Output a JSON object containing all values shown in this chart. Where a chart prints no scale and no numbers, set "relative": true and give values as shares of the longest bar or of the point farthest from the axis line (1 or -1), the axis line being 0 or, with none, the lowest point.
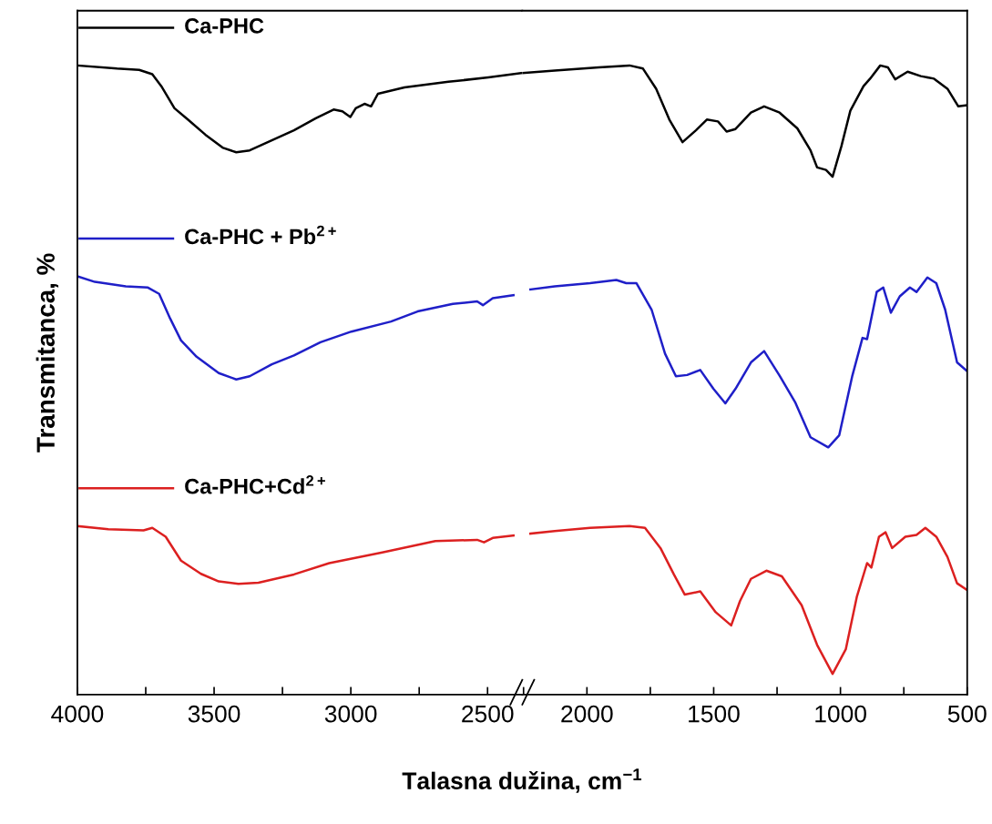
{
  "chart_data": [
    {
      "type": "line",
      "relative": true,
      "ylabel": "Transmitanca, %",
      "xlabel": "Talasna dužina, cm$^{−1}$",
      "xlim": [
        4000,
        2373
      ],
      "xticks": [
        4000,
        {
          "value": 3750,
          "label": null
        },
        3500,
        {
          "value": 3250,
          "label": null
        },
        3000,
        {
          "value": 2750,
          "label": null
        },
        2500
      ],
      "tick_labels": "x",
      "legend": "left",
      "grid": false,
      "series": [
        {
          "name": "Ca-PHC",
          "color": "#000000",
          "x": [
            4000,
            3855,
            3774,
            3726,
            3693,
            3645,
            3596,
            3532,
            3467,
            3419,
            3370,
            3289,
            3208,
            3128,
            3063,
            3031,
            3002,
            2982,
            2950,
            2926,
            2901,
            2804,
            2643,
            2497,
            2373
          ],
          "values": [
            1.0,
            0.995,
            0.993,
            0.986,
            0.967,
            0.932,
            0.914,
            0.89,
            0.869,
            0.862,
            0.865,
            0.881,
            0.897,
            0.916,
            0.93,
            0.927,
            0.918,
            0.932,
            0.939,
            0.935,
            0.955,
            0.965,
            0.974,
            0.981,
            0.988
          ]
        },
        {
          "name": "Ca-PHC + Pb$^{2+}$",
          "color": "#1f1fc8",
          "x": [
            4000,
            3936,
            3823,
            3742,
            3701,
            3661,
            3621,
            3564,
            3483,
            3419,
            3370,
            3289,
            3208,
            3111,
            2998,
            2853,
            2756,
            2627,
            2538,
            2517,
            2481,
            2405
          ],
          "values": [
            0.665,
            0.656,
            0.649,
            0.647,
            0.637,
            0.598,
            0.563,
            0.537,
            0.511,
            0.501,
            0.506,
            0.525,
            0.539,
            0.56,
            0.577,
            0.593,
            0.609,
            0.621,
            0.625,
            0.619,
            0.63,
            0.635
          ]
        },
        {
          "name": "Ca-PHC+Cd$^{2+}$",
          "color": "#dc2020",
          "x": [
            4000,
            3887,
            3758,
            3726,
            3677,
            3621,
            3548,
            3483,
            3411,
            3338,
            3208,
            3079,
            2885,
            2691,
            2538,
            2513,
            2481,
            2405
          ],
          "values": [
            0.268,
            0.263,
            0.261,
            0.265,
            0.251,
            0.213,
            0.192,
            0.18,
            0.176,
            0.178,
            0.191,
            0.209,
            0.226,
            0.244,
            0.246,
            0.242,
            0.249,
            0.253
          ]
        }
      ]
    },
    {
      "type": "line",
      "relative": true,
      "xlim": [
        2255,
        500
      ],
      "xticks": [
        {
          "value": 2250,
          "label": null
        },
        2000,
        {
          "value": 1750,
          "label": null
        },
        1500,
        {
          "value": 1250,
          "label": null
        },
        1000,
        {
          "value": 750,
          "label": null
        },
        500
      ],
      "tick_labels": "x",
      "grid": false,
      "series": [
        {
          "color": "#000000",
          "x": [
            2255,
            2127,
            1953,
            1832,
            1779,
            1727,
            1675,
            1623,
            1570,
            1527,
            1483,
            1449,
            1414,
            1353,
            1301,
            1240,
            1170,
            1118,
            1092,
            1057,
            1031,
            996,
            961,
            909,
            883,
            843,
            813,
            784,
            735,
            683,
            631,
            578,
            535,
            500
          ],
          "values": [
            0.988,
            0.992,
            0.997,
            1.0,
            0.995,
            0.963,
            0.914,
            0.878,
            0.897,
            0.914,
            0.911,
            0.895,
            0.899,
            0.925,
            0.935,
            0.925,
            0.9,
            0.865,
            0.838,
            0.834,
            0.823,
            0.872,
            0.928,
            0.967,
            0.979,
            1.0,
            0.997,
            0.978,
            0.99,
            0.983,
            0.979,
            0.963,
            0.935,
            0.937
          ]
        },
        {
          "color": "#1f1fc8",
          "x": [
            2223,
            2127,
            1988,
            1884,
            1845,
            1805,
            1745,
            1692,
            1649,
            1605,
            1553,
            1501,
            1454,
            1414,
            1353,
            1301,
            1240,
            1179,
            1118,
            1048,
            1005,
            953,
            913,
            895,
            857,
            831,
            801,
            766,
            726,
            700,
            657,
            622,
            587,
            540,
            500
          ],
          "values": [
            0.644,
            0.649,
            0.654,
            0.659,
            0.654,
            0.654,
            0.612,
            0.542,
            0.506,
            0.508,
            0.516,
            0.486,
            0.463,
            0.486,
            0.528,
            0.546,
            0.507,
            0.465,
            0.409,
            0.393,
            0.412,
            0.507,
            0.567,
            0.565,
            0.64,
            0.647,
            0.607,
            0.633,
            0.647,
            0.64,
            0.663,
            0.654,
            0.612,
            0.528,
            0.514
          ]
        },
        {
          "color": "#dc2020",
          "x": [
            2223,
            2127,
            1988,
            1832,
            1771,
            1710,
            1657,
            1614,
            1553,
            1492,
            1431,
            1396,
            1353,
            1292,
            1231,
            1153,
            1092,
            1031,
            979,
            935,
            895,
            878,
            848,
            822,
            796,
            744,
            700,
            665,
            622,
            578,
            540,
            500
          ],
          "values": [
            0.256,
            0.26,
            0.265,
            0.268,
            0.265,
            0.233,
            0.191,
            0.159,
            0.164,
            0.131,
            0.11,
            0.149,
            0.184,
            0.197,
            0.188,
            0.142,
            0.079,
            0.033,
            0.072,
            0.156,
            0.209,
            0.202,
            0.251,
            0.258,
            0.233,
            0.251,
            0.254,
            0.265,
            0.251,
            0.219,
            0.177,
            0.166
          ]
        }
      ]
    }
  ]
}
